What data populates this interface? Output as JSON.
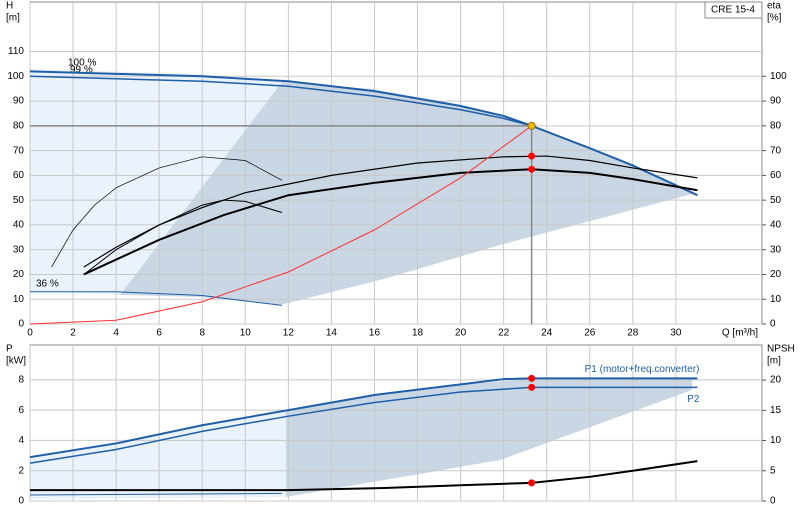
{
  "chart_data": [
    {
      "type": "line",
      "title": "CRE 15-4",
      "y_label": "H",
      "y_unit": "[m]",
      "y2_label": "eta",
      "y2_unit": "[%]",
      "x_label": "Q [m³/h]",
      "xlim": [
        0,
        34
      ],
      "xticks": [
        0,
        2,
        4,
        6,
        8,
        10,
        12,
        14,
        16,
        18,
        20,
        22,
        24,
        26,
        28,
        30
      ],
      "ylim": [
        0,
        130
      ],
      "yticks": [
        0,
        10,
        20,
        30,
        40,
        50,
        60,
        70,
        80,
        90,
        100,
        110
      ],
      "y2lim": [
        0,
        130
      ],
      "y2ticks": [
        0,
        10,
        20,
        30,
        40,
        50,
        60,
        70,
        80,
        90,
        100
      ],
      "grid": true,
      "annotations": [
        "100 %",
        "99 %",
        "36 %"
      ],
      "series": [
        {
          "color": "#1f5fa8",
          "width": 2,
          "x": [
            0,
            4,
            8,
            12,
            16,
            20,
            22,
            23.3,
            26,
            28,
            31
          ],
          "values": [
            102,
            101,
            100,
            98,
            94,
            88,
            84,
            80,
            71,
            64,
            52
          ]
        },
        {
          "color": "#1f5fa8",
          "width": 1.5,
          "x": [
            0,
            4,
            8,
            12,
            16,
            20,
            22,
            23.3
          ],
          "values": [
            100,
            99,
            98,
            96,
            92,
            86.5,
            83,
            80
          ]
        },
        {
          "color": "#1f5fa8",
          "width": 1,
          "x": [
            0,
            4,
            8,
            11.7
          ],
          "values": [
            13,
            13,
            11.5,
            7.5
          ]
        },
        {
          "color": "#000000",
          "width": 1.2,
          "x": [
            2.5,
            4,
            6,
            8,
            10,
            14,
            18,
            22,
            24,
            26,
            28,
            31
          ],
          "values": [
            23,
            31,
            40,
            47,
            53,
            60,
            65,
            67.5,
            67.8,
            66,
            63,
            59
          ]
        },
        {
          "color": "#000000",
          "width": 2,
          "x": [
            2.5,
            6,
            9,
            12,
            16,
            20,
            23.3,
            26,
            28,
            31
          ],
          "values": [
            20,
            34,
            44,
            52,
            57,
            61,
            62.5,
            61,
            58.5,
            54
          ]
        },
        {
          "color": "#000000",
          "width": 0.7,
          "x": [
            1,
            2,
            3,
            4,
            6,
            8,
            10,
            11.7
          ],
          "values": [
            23,
            38,
            48,
            55,
            63,
            67.5,
            66,
            58
          ]
        },
        {
          "color": "#000000",
          "width": 1,
          "x": [
            2.5,
            4,
            6,
            8,
            9,
            10,
            11.7
          ],
          "values": [
            20,
            30,
            40,
            48,
            50,
            49.5,
            45
          ]
        },
        {
          "color": "#ff3030",
          "width": 1,
          "x": [
            0,
            4,
            8,
            12,
            16,
            20,
            23.3
          ],
          "values": [
            0,
            1.5,
            9,
            21,
            38,
            59,
            80
          ]
        },
        {
          "color": "#f5b800",
          "marker": true,
          "guide": true,
          "x": [
            23.3
          ],
          "values": [
            80
          ]
        },
        {
          "color": "#ff0000",
          "marker": true,
          "axis": "y2",
          "x": [
            23.3,
            23.3
          ],
          "values": [
            67.8,
            62.5
          ]
        }
      ]
    },
    {
      "type": "line",
      "y_label": "P",
      "y_unit": "[kW]",
      "y2_label": "NPSH",
      "y2_unit": "[m]",
      "xlim": [
        0,
        34
      ],
      "xticks": [
        0,
        2,
        4,
        6,
        8,
        10,
        12,
        14,
        16,
        18,
        20,
        22,
        24,
        26,
        28,
        30
      ],
      "ylim": [
        0,
        10.3
      ],
      "yticks": [
        0,
        2,
        4,
        6,
        8
      ],
      "y2lim": [
        0,
        25.8
      ],
      "y2ticks": [
        0,
        5,
        10,
        15,
        20
      ],
      "grid": true,
      "series": [
        {
          "name": "P1 (motor+freq.converter)",
          "color": "#1f5fa8",
          "width": 2,
          "x": [
            0,
            4,
            8,
            12,
            16,
            20,
            22,
            23.3,
            31
          ],
          "values": [
            2.9,
            3.8,
            5.0,
            6.0,
            7.0,
            7.7,
            8.05,
            8.1,
            8.1
          ]
        },
        {
          "name": "P2",
          "color": "#1f5fa8",
          "width": 1.5,
          "x": [
            0,
            4,
            8,
            12,
            16,
            20,
            23.3,
            31
          ],
          "values": [
            2.5,
            3.4,
            4.6,
            5.6,
            6.5,
            7.2,
            7.5,
            7.5
          ]
        },
        {
          "color": "#1f5fa8",
          "width": 1,
          "x": [
            0,
            11.7
          ],
          "values": [
            0.4,
            0.5
          ]
        },
        {
          "color": "#000000",
          "width": 2,
          "axis": "y2",
          "x": [
            0,
            12,
            16,
            20,
            23.3,
            26,
            28,
            31
          ],
          "values": [
            1.8,
            1.8,
            2.1,
            2.6,
            3.0,
            4.0,
            5.0,
            6.6
          ]
        },
        {
          "color": "#ff0000",
          "marker": true,
          "x": [
            23.3,
            23.3
          ],
          "values": [
            8.1,
            7.5
          ]
        },
        {
          "color": "#ff0000",
          "marker": true,
          "axis": "y2",
          "x": [
            23.3
          ],
          "values": [
            3.0
          ]
        }
      ]
    }
  ]
}
